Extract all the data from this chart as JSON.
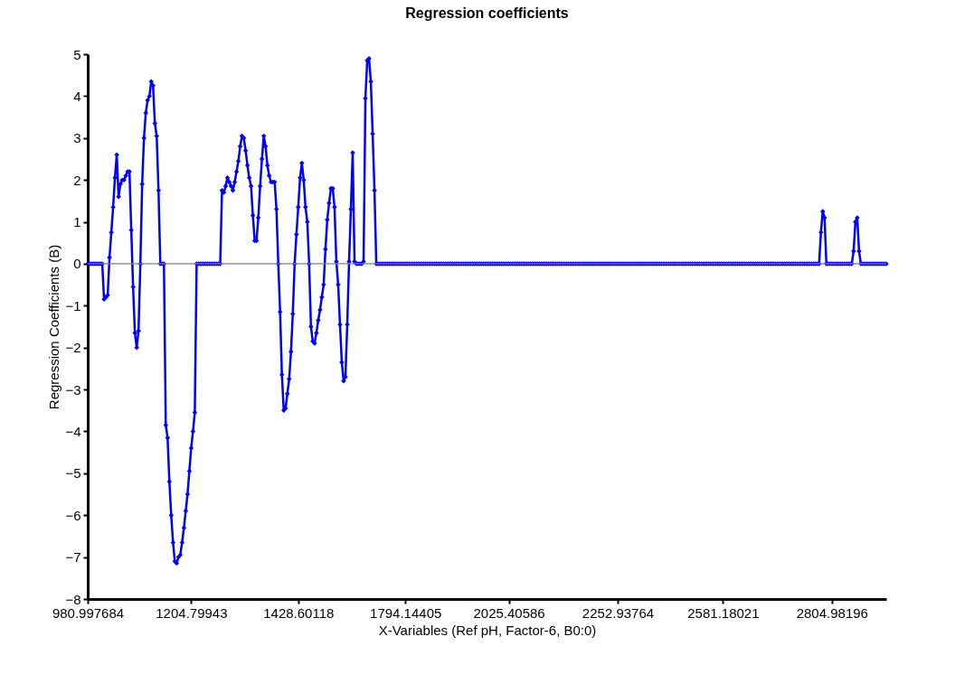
{
  "chart_data": {
    "type": "line",
    "title": "Regression coefficients",
    "xlabel": "X-Variables (Ref pH, Factor-6, B0:0)",
    "ylabel": "Regression Coefficients (B)",
    "categories": [
      "980.997684",
      null,
      null,
      null,
      null,
      null,
      null,
      null,
      null,
      null,
      null,
      null,
      null,
      null,
      null,
      null,
      null,
      null,
      null,
      null,
      null,
      null,
      null,
      null,
      null,
      null,
      null,
      null,
      null,
      null,
      null,
      null,
      null,
      null,
      null,
      null,
      null,
      null,
      null,
      null,
      null,
      null,
      null,
      null,
      null,
      null,
      null,
      null,
      null,
      null,
      null,
      null,
      null,
      null,
      null,
      null,
      null,
      "1204.79943",
      null,
      null,
      null,
      null,
      null,
      null,
      null,
      null,
      null,
      null,
      null,
      null,
      null,
      null,
      null,
      null,
      null,
      null,
      null,
      null,
      null,
      null,
      null,
      null,
      null,
      null,
      null,
      null,
      null,
      null,
      null,
      null,
      null,
      null,
      null,
      null,
      null,
      null,
      null,
      null,
      null,
      null,
      null,
      null,
      null,
      null,
      null,
      null,
      null,
      null,
      null,
      null,
      null,
      null,
      null,
      null,
      null,
      null,
      "1428.60118",
      null,
      null,
      null,
      null,
      null,
      null,
      null,
      null,
      null,
      null,
      null,
      null,
      null,
      null,
      null,
      null,
      null,
      null,
      null,
      null,
      null,
      null,
      null,
      null,
      null,
      null,
      null,
      null,
      null,
      null,
      null,
      null,
      null,
      null,
      null,
      null,
      null,
      null,
      null,
      null,
      null,
      null,
      null,
      null,
      null,
      null,
      null,
      null,
      null,
      null,
      null,
      null,
      null,
      null,
      null,
      null,
      null,
      null,
      "1794.14405",
      null,
      null,
      null,
      null,
      null,
      null,
      null,
      null,
      null,
      null,
      null,
      null,
      null,
      null,
      null,
      null,
      null,
      null,
      null,
      null,
      null,
      null,
      null,
      null,
      null,
      null,
      null,
      null,
      null,
      null,
      null,
      null,
      null,
      null,
      null,
      null,
      null,
      null,
      null,
      null,
      null,
      null,
      null,
      null,
      null,
      null,
      null,
      null,
      null,
      null,
      null,
      null,
      null,
      null,
      null,
      null,
      "2025.40586",
      null,
      null,
      null,
      null,
      null,
      null,
      null,
      null,
      null,
      null,
      null,
      null,
      null,
      null,
      null,
      null,
      null,
      null,
      null,
      null,
      null,
      null,
      null,
      null,
      null,
      null,
      null,
      null,
      null,
      null,
      null,
      null,
      null,
      null,
      null,
      null,
      null,
      null,
      null,
      null,
      null,
      null,
      null,
      null,
      null,
      null,
      null,
      null,
      null,
      null,
      null,
      null,
      null,
      null,
      null,
      null,
      null,
      null,
      null,
      "2252.93764",
      null,
      null,
      null,
      null,
      null,
      null,
      null,
      null,
      null,
      null,
      null,
      null,
      null,
      null,
      null,
      null,
      null,
      null,
      null,
      null,
      null,
      null,
      null,
      null,
      null,
      null,
      null,
      null,
      null,
      null,
      null,
      null,
      null,
      null,
      null,
      null,
      null,
      null,
      null,
      null,
      null,
      null,
      null,
      null,
      null,
      null,
      null,
      null,
      null,
      null,
      null,
      null,
      null,
      null,
      null,
      null,
      null,
      "2581.18021",
      null,
      null,
      null,
      null,
      null,
      null,
      null,
      null,
      null,
      null,
      null,
      null,
      null,
      null,
      null,
      null,
      null,
      null,
      null,
      null,
      null,
      null,
      null,
      null,
      null,
      null,
      null,
      null,
      null,
      null,
      null,
      null,
      null,
      null,
      null,
      null,
      null,
      null,
      null,
      null,
      null,
      null,
      null,
      null,
      null,
      null,
      null,
      null,
      null,
      null,
      null,
      null,
      null,
      null,
      null,
      null,
      null,
      null,
      null,
      "2804.98196",
      null,
      null,
      null,
      null,
      null,
      null,
      null,
      null,
      null,
      null,
      null,
      null,
      null,
      null,
      null,
      null,
      null,
      null,
      null,
      null,
      null,
      null,
      null,
      null,
      null,
      null,
      null,
      null,
      null,
      null
    ],
    "series": [
      {
        "color": "#0000ff",
        "values": [
          0,
          0,
          0,
          0,
          0,
          0,
          0,
          0,
          0,
          -0.85,
          -0.8,
          -0.75,
          0.15,
          0.75,
          1.35,
          2.05,
          2.6,
          1.6,
          1.9,
          2.0,
          2.0,
          2.1,
          2.2,
          2.2,
          0.8,
          -0.55,
          -1.65,
          -2.0,
          -1.6,
          0,
          1.9,
          3.0,
          3.6,
          3.9,
          4.0,
          4.35,
          4.25,
          3.35,
          3.05,
          1.75,
          0,
          0,
          0,
          -3.85,
          -4.15,
          -5.2,
          -6.0,
          -6.65,
          -7.1,
          -7.15,
          -7.0,
          -6.95,
          -6.65,
          -6.3,
          -5.9,
          -5.5,
          -4.95,
          -4.4,
          -4.0,
          -3.55,
          0,
          0,
          0,
          0,
          0,
          0,
          0,
          0,
          0,
          0,
          0,
          0,
          0,
          0,
          1.75,
          1.7,
          1.85,
          2.05,
          1.95,
          1.85,
          1.75,
          1.95,
          2.2,
          2.45,
          2.8,
          3.05,
          3.0,
          2.7,
          2.35,
          2.05,
          1.85,
          1.15,
          0.55,
          0.55,
          1.1,
          1.85,
          2.5,
          3.05,
          2.8,
          2.35,
          2.1,
          1.95,
          1.95,
          1.95,
          1.3,
          0,
          -1.15,
          -2.65,
          -3.5,
          -3.45,
          -3.1,
          -2.75,
          -2.1,
          -1.2,
          0,
          0.7,
          1.35,
          2.05,
          2.4,
          2.0,
          1.35,
          1.0,
          0,
          -1.5,
          -1.85,
          -1.9,
          -1.65,
          -1.35,
          -1.1,
          -0.8,
          -0.5,
          0.35,
          1.05,
          1.45,
          1.8,
          1.8,
          1.35,
          0.05,
          -0.5,
          -1.45,
          -2.35,
          -2.8,
          -2.7,
          -1.45,
          0.05,
          1.3,
          2.65,
          0.05,
          0,
          0,
          0,
          0,
          0.05,
          3.95,
          4.85,
          4.9,
          4.35,
          3.1,
          1.75,
          0,
          0,
          0,
          0,
          0,
          0,
          0,
          0,
          0,
          0,
          0,
          0,
          0,
          0,
          0,
          0,
          0,
          0,
          0,
          0,
          0,
          0,
          0,
          0,
          0,
          0,
          0,
          0,
          0,
          0,
          0,
          0,
          0,
          0,
          0,
          0,
          0,
          0,
          0,
          0,
          0,
          0,
          0,
          0,
          0,
          0,
          0,
          0,
          0,
          0,
          0,
          0,
          0,
          0,
          0,
          0,
          0,
          0,
          0,
          0,
          0,
          0,
          0,
          0,
          0,
          0,
          0,
          0,
          0,
          0,
          0,
          0,
          0,
          0,
          0,
          0,
          0,
          0,
          0,
          0,
          0,
          0,
          0,
          0,
          0,
          0,
          0,
          0,
          0,
          0,
          0,
          0,
          0,
          0,
          0,
          0,
          0,
          0,
          0,
          0,
          0,
          0,
          0,
          0,
          0,
          0,
          0,
          0,
          0,
          0,
          0,
          0,
          0,
          0,
          0,
          0,
          0,
          0,
          0,
          0,
          0,
          0,
          0,
          0,
          0,
          0,
          0,
          0,
          0,
          0,
          0,
          0,
          0,
          0,
          0,
          0,
          0,
          0,
          0,
          0,
          0,
          0,
          0,
          0,
          0,
          0,
          0,
          0,
          0,
          0,
          0,
          0,
          0,
          0,
          0,
          0,
          0,
          0,
          0,
          0,
          0,
          0,
          0,
          0,
          0,
          0,
          0,
          0,
          0,
          0,
          0,
          0,
          0,
          0,
          0,
          0,
          0,
          0,
          0,
          0,
          0,
          0,
          0,
          0,
          0,
          0,
          0,
          0,
          0,
          0,
          0,
          0,
          0,
          0,
          0,
          0,
          0,
          0,
          0,
          0,
          0,
          0,
          0,
          0,
          0,
          0,
          0,
          0,
          0,
          0,
          0,
          0,
          0,
          0,
          0,
          0,
          0,
          0,
          0,
          0,
          0,
          0,
          0,
          0,
          0,
          0,
          0,
          0,
          0,
          0,
          0,
          0,
          0,
          0,
          0,
          0,
          0,
          0,
          0,
          0,
          0,
          0,
          0,
          0,
          0,
          0.75,
          1.25,
          1.1,
          0,
          0,
          0,
          0,
          0,
          0,
          0,
          0,
          0,
          0,
          0,
          0,
          0,
          0,
          0,
          0.3,
          1.0,
          1.1,
          0.3,
          0,
          0,
          0,
          0,
          0,
          0,
          0,
          0,
          0,
          0,
          0,
          0,
          0,
          0,
          0
        ]
      }
    ],
    "ylim": [
      -8,
      5
    ],
    "yticks": [
      -8,
      -7,
      -6,
      -5,
      -4,
      -3,
      -2,
      -1,
      0,
      1,
      2,
      3,
      4,
      5
    ],
    "ref_lines": [
      {
        "axis": "y",
        "value": 0,
        "color": "#808080"
      }
    ],
    "marker": "diamond",
    "line_style": "solid"
  }
}
